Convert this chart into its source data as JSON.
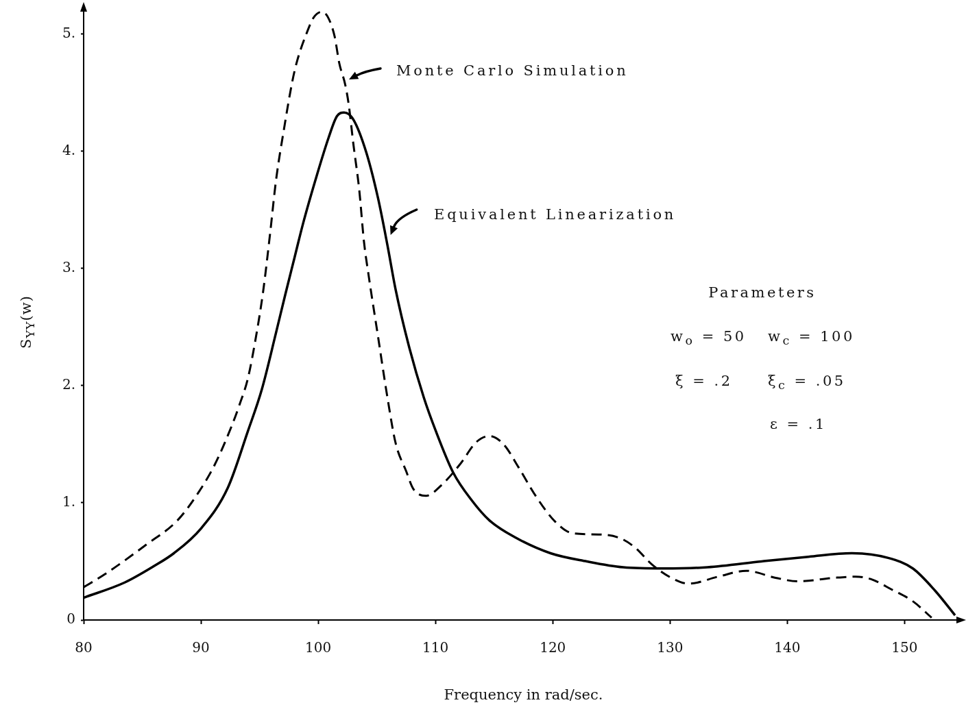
{
  "chart_data": {
    "type": "line",
    "xlabel": "Frequency in rad/sec.",
    "ylabel": "S$_{YY}$(w)",
    "annotations": [
      "Monte Carlo Simulation",
      "Equivalent Linearization",
      "Parameters",
      "w$_{o}$ = 50",
      "w$_{c}$ = 100",
      "ξ = .2",
      "ξ$_{c}$ = .05",
      "ε = .1"
    ],
    "xlim": [
      80,
      155
    ],
    "xticks": [
      80,
      90,
      100,
      110,
      120,
      130,
      140,
      150
    ],
    "ylim": [
      0,
      5.25
    ],
    "yticks": [
      0,
      {
        "value": 1,
        "label": "1."
      },
      {
        "value": 2,
        "label": "2."
      },
      {
        "value": 3,
        "label": "3."
      },
      {
        "value": 4,
        "label": "4."
      },
      {
        "value": 5,
        "label": "5."
      }
    ],
    "series": [
      {
        "color": "#000000",
        "line_style": "dashed",
        "x": [
          80,
          81.8,
          85.3,
          88,
          89.8,
          91.2,
          92.6,
          93.3,
          94,
          94.7,
          95.3,
          95.9,
          96.4,
          97.1,
          97.8,
          98.2,
          99.1,
          99.6,
          100.3,
          100.8,
          101.4,
          101.8,
          102.3,
          102.6,
          103,
          103.5,
          103.9,
          104.3,
          105.1,
          105.9,
          106.6,
          107.5,
          108.1,
          109.2,
          110.5,
          112.1,
          113.5,
          114.6,
          115.8,
          117.1,
          118.6,
          120.2,
          121.7,
          123.9,
          125.7,
          127,
          128.5,
          130.1,
          131.6,
          134.1,
          136.5,
          139,
          140.9,
          144,
          145.8,
          147.1,
          148.9,
          150.7,
          152.3
        ],
        "values": [
          0.28,
          0.39,
          0.64,
          0.85,
          1.09,
          1.33,
          1.65,
          1.84,
          2.06,
          2.42,
          2.8,
          3.3,
          3.75,
          4.2,
          4.6,
          4.77,
          5.03,
          5.14,
          5.19,
          5.15,
          4.98,
          4.75,
          4.57,
          4.4,
          4.06,
          3.67,
          3.23,
          2.94,
          2.42,
          1.9,
          1.51,
          1.27,
          1.12,
          1.06,
          1.15,
          1.33,
          1.52,
          1.57,
          1.5,
          1.3,
          1.05,
          0.84,
          0.74,
          0.73,
          0.7,
          0.62,
          0.47,
          0.36,
          0.31,
          0.37,
          0.42,
          0.36,
          0.33,
          0.36,
          0.37,
          0.35,
          0.26,
          0.16,
          0.02
        ]
      },
      {
        "color": "#000000",
        "line_style": "solid",
        "x": [
          80,
          83.5,
          86,
          87.7,
          90,
          92.3,
          94,
          95.2,
          96.4,
          97.2,
          98,
          98.7,
          99.9,
          100.9,
          101.6,
          102.2,
          103,
          104.1,
          105.1,
          105.9,
          106.6,
          107.7,
          109,
          110,
          111.5,
          113.1,
          114.6,
          116.7,
          119.8,
          122.9,
          126,
          129.4,
          133.2,
          137.8,
          141.8,
          145.5,
          148.6,
          150.7,
          152.6,
          154.3
        ],
        "values": [
          0.19,
          0.32,
          0.46,
          0.57,
          0.78,
          1.13,
          1.61,
          1.97,
          2.45,
          2.78,
          3.1,
          3.38,
          3.8,
          4.12,
          4.3,
          4.33,
          4.27,
          3.99,
          3.6,
          3.2,
          2.82,
          2.35,
          1.9,
          1.62,
          1.26,
          1.02,
          0.85,
          0.71,
          0.57,
          0.5,
          0.45,
          0.44,
          0.45,
          0.5,
          0.54,
          0.57,
          0.53,
          0.44,
          0.25,
          0.04
        ]
      }
    ]
  }
}
